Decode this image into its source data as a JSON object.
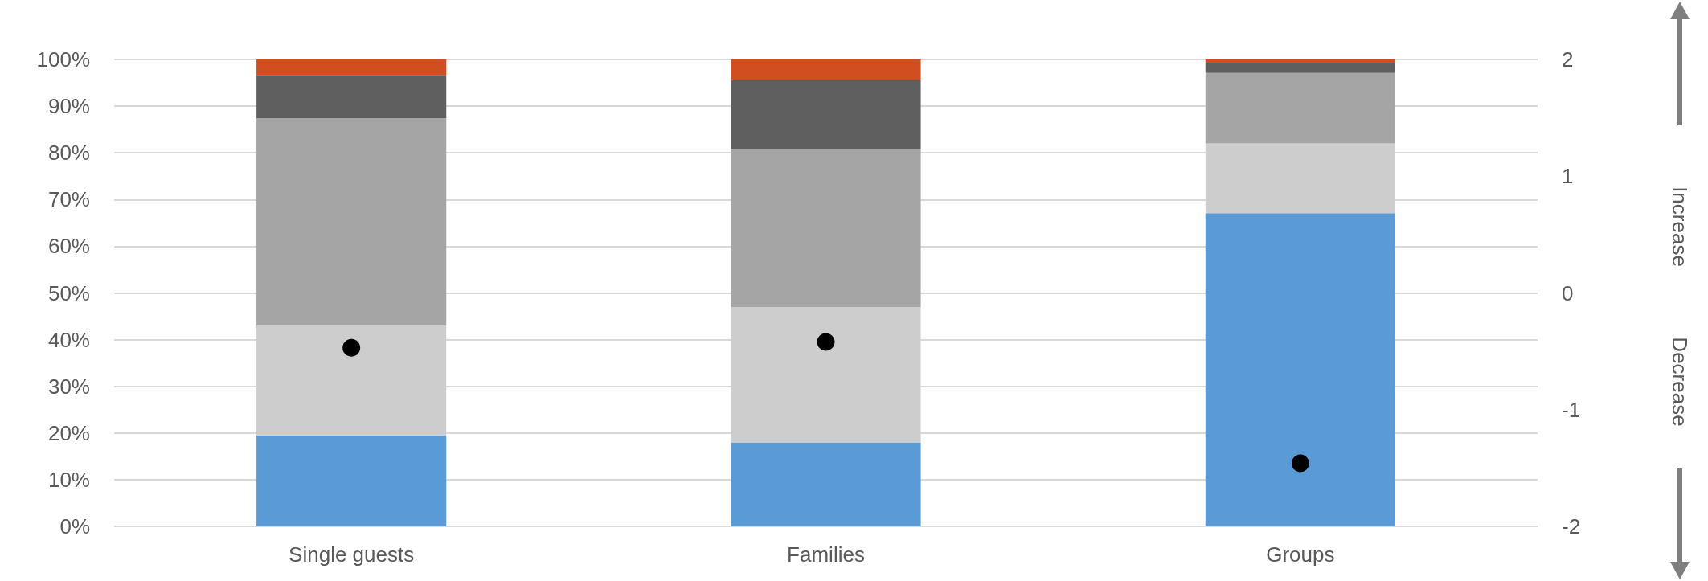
{
  "chart_data": {
    "type": "bar",
    "stacked": true,
    "categories": [
      "Single guests",
      "Families",
      "Groups"
    ],
    "series": [
      {
        "color": "#5b9bd5",
        "values": [
          19.5,
          18.0,
          67.1
        ]
      },
      {
        "color": "#cccdcc",
        "values": [
          23.5,
          29.0,
          14.9
        ]
      },
      {
        "color": "#a5a5a5",
        "values": [
          44.4,
          33.8,
          15.1
        ]
      },
      {
        "color": "#5f5f5f",
        "values": [
          9.3,
          14.8,
          2.2
        ]
      },
      {
        "color": "#d04e1f",
        "values": [
          3.3,
          4.4,
          0.7
        ]
      },
      {
        "type": "scatter",
        "axis": "y2",
        "color": "#000000",
        "x": [
          "Single guests",
          "Families",
          "Groups"
        ],
        "values": [
          -0.47,
          -0.42,
          -1.46
        ]
      }
    ],
    "ylim": [
      0,
      100
    ],
    "yticks": [
      {
        "value": 0,
        "label": "0%"
      },
      {
        "value": 10,
        "label": "10%"
      },
      {
        "value": 20,
        "label": "20%"
      },
      {
        "value": 30,
        "label": "30%"
      },
      {
        "value": 40,
        "label": "40%"
      },
      {
        "value": 50,
        "label": "50%"
      },
      {
        "value": 60,
        "label": "60%"
      },
      {
        "value": 70,
        "label": "70%"
      },
      {
        "value": 80,
        "label": "80%"
      },
      {
        "value": 90,
        "label": "90%"
      },
      {
        "value": 100,
        "label": "100%"
      }
    ],
    "y2lim": [
      -2,
      2
    ],
    "y2ticks": [
      -2,
      -1,
      0,
      1,
      2
    ],
    "grid": "y",
    "marker": "circle",
    "annotations": [
      "Increase",
      "Decrease"
    ]
  }
}
